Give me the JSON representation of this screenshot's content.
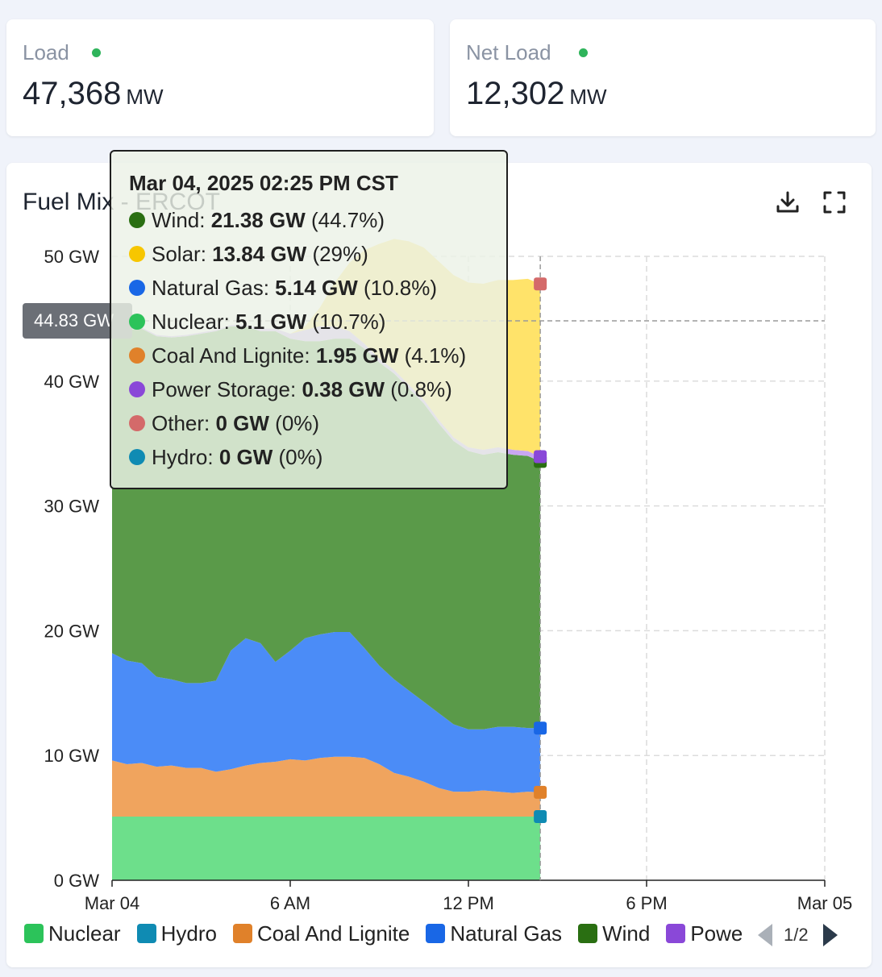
{
  "kpis": [
    {
      "label": "Load",
      "value": "47,368",
      "unit": "MW",
      "status_color": "#2fb45b"
    },
    {
      "label": "Net Load",
      "value": "12,302",
      "unit": "MW",
      "status_color": "#2fb45b"
    }
  ],
  "chart": {
    "title": "Fuel Mix - ERCOT",
    "icons": [
      "download-icon",
      "fullscreen-icon"
    ],
    "cursor_value_label": "44.83 GW",
    "tooltip": {
      "title": "Mar 04, 2025 02:25 PM CST",
      "rows": [
        {
          "name": "Wind",
          "value": "21.38 GW",
          "pct": "(44.7%)",
          "color": "#2a6f12"
        },
        {
          "name": "Solar",
          "value": "13.84 GW",
          "pct": "(29%)",
          "color": "#f7c600"
        },
        {
          "name": "Natural Gas",
          "value": "5.14 GW",
          "pct": "(10.8%)",
          "color": "#1967e6"
        },
        {
          "name": "Nuclear",
          "value": "5.1 GW",
          "pct": "(10.7%)",
          "color": "#2cc35a"
        },
        {
          "name": "Coal And Lignite",
          "value": "1.95 GW",
          "pct": "(4.1%)",
          "color": "#e0812a"
        },
        {
          "name": "Power Storage",
          "value": "0.38 GW",
          "pct": "(0.8%)",
          "color": "#8a48d8"
        },
        {
          "name": "Other",
          "value": "0 GW",
          "pct": "(0%)",
          "color": "#d46a6a"
        },
        {
          "name": "Hydro",
          "value": "0 GW",
          "pct": "(0%)",
          "color": "#0f8bb3"
        }
      ]
    },
    "legend": [
      {
        "name": "Nuclear",
        "color": "#2cc35a"
      },
      {
        "name": "Hydro",
        "color": "#0f8bb3"
      },
      {
        "name": "Coal And Lignite",
        "color": "#e0812a"
      },
      {
        "name": "Natural Gas",
        "color": "#1967e6"
      },
      {
        "name": "Wind",
        "color": "#2a6f12"
      },
      {
        "name": "Power Storage",
        "color": "#8a48d8"
      }
    ],
    "legend_page": "1/2"
  },
  "chart_data": {
    "type": "area",
    "stacked": true,
    "title": "Fuel Mix - ERCOT",
    "x_unit": "hours since Mar 04 00:00",
    "xlim": [
      0,
      24
    ],
    "ylim": [
      0,
      50
    ],
    "y_ticks": [
      "0 GW",
      "10 GW",
      "20 GW",
      "30 GW",
      "40 GW",
      "50 GW"
    ],
    "x_ticks": [
      {
        "x": 0,
        "label": "Mar 04"
      },
      {
        "x": 6,
        "label": "6 AM"
      },
      {
        "x": 12,
        "label": "12 PM"
      },
      {
        "x": 18,
        "label": "6 PM"
      },
      {
        "x": 24,
        "label": "Mar 05"
      }
    ],
    "cursor_x": 14.42,
    "cursor_y": 44.83,
    "x": [
      0,
      0.5,
      1,
      1.5,
      2,
      2.5,
      3,
      3.5,
      4,
      4.5,
      5,
      5.5,
      6,
      6.5,
      7,
      7.5,
      8,
      8.5,
      9,
      9.5,
      10,
      10.5,
      11,
      11.5,
      12,
      12.5,
      13,
      13.5,
      14,
      14.42
    ],
    "grid": true,
    "series": [
      {
        "name": "Nuclear",
        "color": "#6ddf8b",
        "values": [
          5.1,
          5.1,
          5.1,
          5.1,
          5.1,
          5.1,
          5.1,
          5.1,
          5.1,
          5.1,
          5.1,
          5.1,
          5.1,
          5.1,
          5.1,
          5.1,
          5.1,
          5.1,
          5.1,
          5.1,
          5.1,
          5.1,
          5.1,
          5.1,
          5.1,
          5.1,
          5.1,
          5.1,
          5.1,
          5.1
        ]
      },
      {
        "name": "Hydro",
        "color": "#0f8bb3",
        "values": [
          0,
          0,
          0,
          0,
          0,
          0,
          0,
          0,
          0,
          0,
          0,
          0,
          0,
          0,
          0,
          0,
          0,
          0,
          0,
          0,
          0,
          0,
          0,
          0,
          0,
          0,
          0,
          0,
          0,
          0
        ]
      },
      {
        "name": "Coal And Lignite",
        "color": "#f0a45e",
        "values": [
          4.5,
          4.2,
          4.3,
          4.0,
          4.1,
          3.9,
          3.9,
          3.6,
          3.8,
          4.1,
          4.3,
          4.4,
          4.6,
          4.5,
          4.7,
          4.8,
          4.8,
          4.7,
          4.2,
          3.5,
          3.2,
          2.8,
          2.3,
          2.0,
          2.0,
          2.1,
          2.0,
          1.9,
          2.0,
          1.95
        ]
      },
      {
        "name": "Natural Gas",
        "color": "#4b8cf7",
        "values": [
          8.6,
          8.3,
          8.0,
          7.2,
          6.9,
          6.8,
          6.8,
          7.3,
          9.5,
          10.2,
          9.6,
          8.0,
          8.7,
          9.8,
          9.9,
          10.0,
          10.0,
          8.8,
          7.9,
          7.5,
          6.9,
          6.4,
          6.0,
          5.4,
          5.0,
          4.9,
          5.2,
          5.3,
          5.1,
          5.14
        ]
      },
      {
        "name": "Wind",
        "color": "#5a9a49",
        "values": [
          26.0,
          26.5,
          26.8,
          27.3,
          27.4,
          27.8,
          28.0,
          28.0,
          26.0,
          25.0,
          25.0,
          26.5,
          25.0,
          23.8,
          23.5,
          23.5,
          23.5,
          24.0,
          24.3,
          24.5,
          24.2,
          23.9,
          23.2,
          22.7,
          22.3,
          22.0,
          22.0,
          21.8,
          21.8,
          21.38
        ]
      },
      {
        "name": "Power Storage",
        "color": "#c9a7f2",
        "values": [
          0.1,
          0.1,
          0.1,
          0.1,
          0.1,
          0.1,
          0.1,
          0.1,
          0.1,
          0.1,
          0.2,
          0.2,
          0.4,
          0.9,
          1.2,
          1.0,
          0.6,
          0.4,
          0.3,
          0.3,
          0.3,
          0.3,
          0.3,
          0.3,
          0.3,
          0.4,
          0.4,
          0.4,
          0.4,
          0.38
        ]
      },
      {
        "name": "Solar",
        "color": "#ffe36a",
        "values": [
          0,
          0,
          0,
          0,
          0,
          0,
          0,
          0,
          0,
          0,
          0,
          0,
          0,
          0.3,
          1.5,
          3.5,
          5.5,
          7.5,
          9.2,
          10.5,
          11.5,
          12.2,
          12.7,
          13.0,
          13.2,
          13.3,
          13.4,
          13.6,
          13.8,
          13.84
        ]
      },
      {
        "name": "Other",
        "color": "#d46a6a",
        "values": [
          0,
          0,
          0,
          0,
          0,
          0,
          0,
          0,
          0,
          0,
          0,
          0,
          0,
          0,
          0,
          0,
          0,
          0,
          0,
          0,
          0,
          0,
          0,
          0,
          0,
          0,
          0,
          0,
          0,
          0
        ]
      }
    ]
  }
}
